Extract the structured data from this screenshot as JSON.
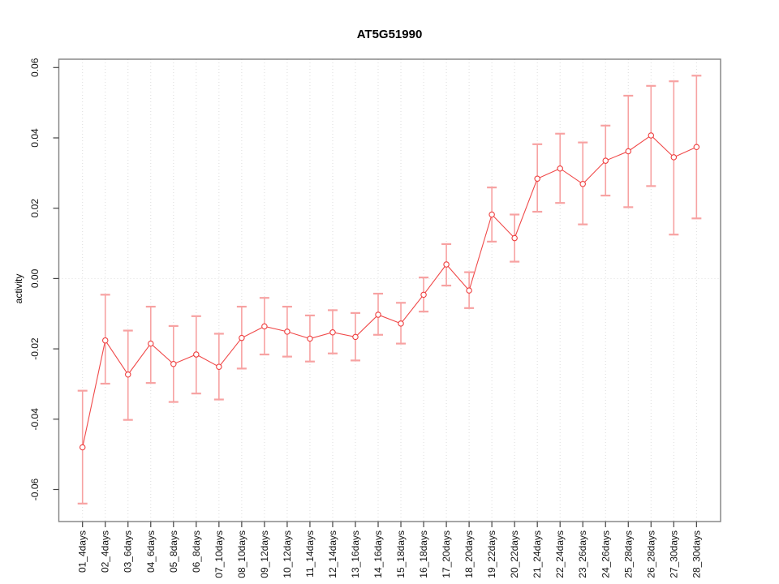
{
  "chart": {
    "title": "AT5G51990",
    "ylabel": "activity"
  },
  "chart_data": {
    "type": "line",
    "title": "AT5G51990",
    "xlabel": "",
    "ylabel": "activity",
    "ylim": [
      -0.069,
      0.062
    ],
    "yticks": [
      -0.06,
      -0.04,
      -0.02,
      0.0,
      0.02,
      0.04,
      0.06
    ],
    "ytick_labels": [
      "-0.06",
      "-0.04",
      "-0.02",
      "0.00",
      "0.02",
      "0.04",
      "0.06"
    ],
    "grid": "vertical dotted gridline at every category; dotted horizontal line at y=0; no legend",
    "marker": "open-circle",
    "categories": [
      "01_4days",
      "02_4days",
      "03_6days",
      "04_6days",
      "05_8days",
      "06_8days",
      "07_10days",
      "08_10days",
      "09_12days",
      "10_12days",
      "11_14days",
      "12_14days",
      "13_16days",
      "14_16days",
      "15_18days",
      "16_18days",
      "17_20days",
      "18_20days",
      "19_22days",
      "20_22days",
      "21_24days",
      "22_24days",
      "23_26days",
      "24_26days",
      "25_28days",
      "26_28days",
      "27_30days",
      "28_30days"
    ],
    "series": [
      {
        "name": "activity",
        "values": [
          -0.048,
          -0.0176,
          -0.0273,
          -0.0185,
          -0.0243,
          -0.0216,
          -0.0251,
          -0.0169,
          -0.0136,
          -0.0151,
          -0.0171,
          -0.0153,
          -0.0166,
          -0.0103,
          -0.0128,
          -0.0046,
          0.004,
          -0.0034,
          0.0182,
          0.0115,
          0.0284,
          0.0313,
          0.0269,
          0.0335,
          0.0362,
          0.0407,
          0.0345,
          0.0374
        ],
        "error_upper": [
          -0.0319,
          -0.0046,
          -0.0148,
          -0.008,
          -0.0135,
          -0.0107,
          -0.0157,
          -0.008,
          -0.0055,
          -0.008,
          -0.0105,
          -0.009,
          -0.0098,
          -0.0043,
          -0.0069,
          0.0003,
          0.0098,
          0.0018,
          0.0259,
          0.0182,
          0.0382,
          0.0412,
          0.0387,
          0.0435,
          0.052,
          0.0548,
          0.0561,
          0.0577
        ],
        "error_lower": [
          -0.064,
          -0.0299,
          -0.0402,
          -0.0297,
          -0.0351,
          -0.0327,
          -0.0344,
          -0.0256,
          -0.0216,
          -0.0222,
          -0.0236,
          -0.0213,
          -0.0233,
          -0.016,
          -0.0185,
          -0.0094,
          -0.002,
          -0.0084,
          0.0105,
          0.0048,
          0.019,
          0.0215,
          0.0154,
          0.0236,
          0.0203,
          0.0263,
          0.0125,
          0.0171
        ]
      }
    ],
    "colors": {
      "line": "#f04949",
      "marker": "#ee4040",
      "errorbar": "#f7a2a2",
      "grid": "#dcdcdc",
      "box": "#808080",
      "zero_line": "#dcdcdc"
    }
  }
}
